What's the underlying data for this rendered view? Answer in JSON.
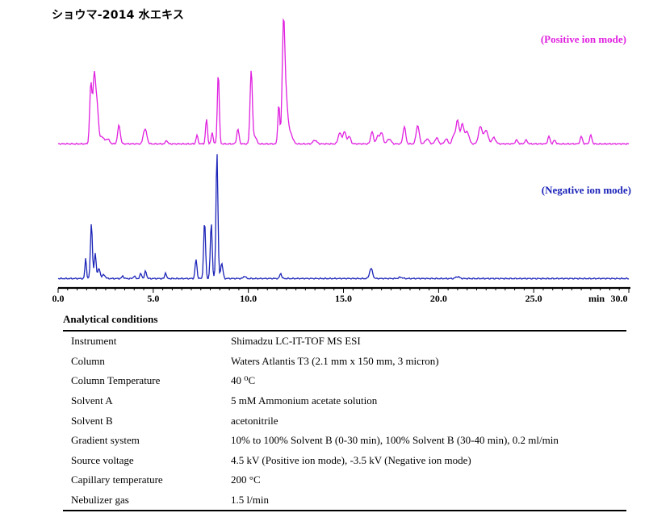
{
  "title": "ショウマ-2014 水エキス",
  "positive_label": "(Positive ion mode)",
  "negative_label": "(Negative ion mode)",
  "colors": {
    "positive": "#e020e0",
    "negative": "#1c24b8",
    "axis": "#000000"
  },
  "chart_data": {
    "type": "line",
    "x_unit_label": "min",
    "xlim": [
      0,
      30
    ],
    "x_ticks": [
      "0.0",
      "5.0",
      "10.0",
      "15.0",
      "20.0",
      "25.0",
      "30.0"
    ],
    "grid": false,
    "series": [
      {
        "name": "(Positive ion mode)",
        "baseline": 0.01,
        "peaks": [
          [
            1.72,
            0.48,
            0.06
          ],
          [
            1.9,
            0.55,
            0.07
          ],
          [
            2.05,
            0.3,
            0.07
          ],
          [
            2.3,
            0.06,
            0.1
          ],
          [
            2.6,
            0.04,
            0.1
          ],
          [
            3.2,
            0.15,
            0.07
          ],
          [
            4.6,
            0.1,
            0.08
          ],
          [
            4.5,
            0.05,
            0.06
          ],
          [
            5.7,
            0.03,
            0.05
          ],
          [
            7.3,
            0.07,
            0.05
          ],
          [
            7.8,
            0.2,
            0.05
          ],
          [
            8.1,
            0.09,
            0.05
          ],
          [
            8.42,
            0.58,
            0.05
          ],
          [
            9.45,
            0.12,
            0.06
          ],
          [
            10.15,
            0.6,
            0.06
          ],
          [
            10.35,
            0.06,
            0.08
          ],
          [
            11.6,
            0.32,
            0.05
          ],
          [
            11.85,
            0.98,
            0.07
          ],
          [
            12.0,
            0.3,
            0.08
          ],
          [
            12.2,
            0.09,
            0.12
          ],
          [
            13.5,
            0.03,
            0.1
          ],
          [
            14.8,
            0.09,
            0.08
          ],
          [
            15.05,
            0.1,
            0.08
          ],
          [
            15.3,
            0.06,
            0.08
          ],
          [
            16.5,
            0.1,
            0.07
          ],
          [
            16.8,
            0.06,
            0.08
          ],
          [
            17.0,
            0.09,
            0.08
          ],
          [
            17.4,
            0.04,
            0.1
          ],
          [
            18.2,
            0.14,
            0.07
          ],
          [
            18.9,
            0.15,
            0.08
          ],
          [
            19.4,
            0.04,
            0.1
          ],
          [
            19.9,
            0.05,
            0.08
          ],
          [
            20.4,
            0.04,
            0.08
          ],
          [
            20.8,
            0.07,
            0.08
          ],
          [
            21.0,
            0.19,
            0.08
          ],
          [
            21.25,
            0.16,
            0.08
          ],
          [
            21.5,
            0.1,
            0.1
          ],
          [
            22.2,
            0.14,
            0.1
          ],
          [
            22.5,
            0.11,
            0.1
          ],
          [
            22.9,
            0.05,
            0.1
          ],
          [
            24.1,
            0.03,
            0.07
          ],
          [
            24.6,
            0.03,
            0.07
          ],
          [
            25.8,
            0.06,
            0.06
          ],
          [
            26.1,
            0.03,
            0.06
          ],
          [
            27.5,
            0.06,
            0.06
          ],
          [
            28.0,
            0.07,
            0.06
          ]
        ]
      },
      {
        "name": "(Negative ion mode)",
        "baseline": 0.01,
        "peaks": [
          [
            1.45,
            0.16,
            0.04
          ],
          [
            1.75,
            0.44,
            0.05
          ],
          [
            1.95,
            0.2,
            0.05
          ],
          [
            2.15,
            0.08,
            0.06
          ],
          [
            2.4,
            0.03,
            0.08
          ],
          [
            3.4,
            0.02,
            0.05
          ],
          [
            4.0,
            0.02,
            0.05
          ],
          [
            4.35,
            0.04,
            0.05
          ],
          [
            4.6,
            0.06,
            0.05
          ],
          [
            5.65,
            0.05,
            0.04
          ],
          [
            7.25,
            0.15,
            0.05
          ],
          [
            7.7,
            0.45,
            0.05
          ],
          [
            8.05,
            0.44,
            0.05
          ],
          [
            8.35,
            1.0,
            0.05
          ],
          [
            8.6,
            0.12,
            0.06
          ],
          [
            9.8,
            0.02,
            0.06
          ],
          [
            11.7,
            0.04,
            0.05
          ],
          [
            16.45,
            0.08,
            0.08
          ],
          [
            18.0,
            0.01,
            0.1
          ],
          [
            21.0,
            0.015,
            0.1
          ]
        ]
      }
    ]
  },
  "conditions": {
    "title": "Analytical conditions",
    "rows": [
      {
        "param": "Instrument",
        "value": "Shimadzu LC-IT-TOF MS ESI"
      },
      {
        "param": "Column",
        "value": "Waters Atlantis T3 (2.1 mm x 150 mm, 3 micron)"
      },
      {
        "param": "Column Temperature",
        "value": "40 ⁰C"
      },
      {
        "param": "Solvent A",
        "value": "5 mM Ammonium acetate solution"
      },
      {
        "param": "Solvent B",
        "value": "acetonitrile"
      },
      {
        "param": "Gradient system",
        "value": "10% to 100% Solvent B (0-30 min), 100% Solvent B (30-40 min), 0.2 ml/min"
      },
      {
        "param": "Source voltage",
        "value": "4.5 kV (Positive ion mode), -3.5 kV (Negative ion mode)"
      },
      {
        "param": "Capillary temperature",
        "value": "200 °C"
      },
      {
        "param": "Nebulizer gas",
        "value": "1.5 l/min"
      }
    ]
  }
}
